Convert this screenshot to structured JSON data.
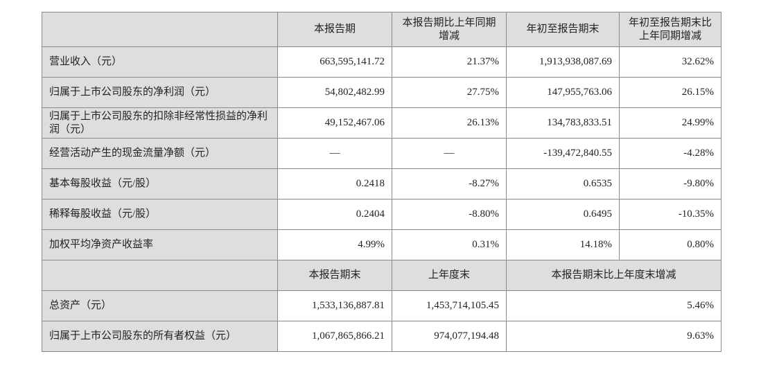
{
  "table": {
    "header": [
      "本报告期",
      "本报告期比上年同期增减",
      "年初至报告期末",
      "年初至报告期末比上年同期增减"
    ],
    "rows": [
      [
        "营业收入（元）",
        "663,595,141.72",
        "21.37%",
        "1,913,938,087.69",
        "32.62%"
      ],
      [
        "归属于上市公司股东的净利润（元）",
        "54,802,482.99",
        "27.75%",
        "147,955,763.06",
        "26.15%"
      ],
      [
        "归属于上市公司股东的扣除非经常性损益的净利润（元）",
        "49,152,467.06",
        "26.13%",
        "134,783,833.51",
        "24.99%"
      ],
      [
        "经营活动产生的现金流量净额（元）",
        "—",
        "—",
        "-139,472,840.55",
        "-4.28%"
      ],
      [
        "基本每股收益（元/股）",
        "0.2418",
        "-8.27%",
        "0.6535",
        "-9.80%"
      ],
      [
        "稀释每股收益（元/股）",
        "0.2404",
        "-8.80%",
        "0.6495",
        "-10.35%"
      ],
      [
        "加权平均净资产收益率",
        "4.99%",
        "0.31%",
        "14.18%",
        "0.80%"
      ]
    ],
    "header2": [
      "本报告期末",
      "上年度末",
      "本报告期末比上年度末增减"
    ],
    "rows2": [
      [
        "总资产（元）",
        "1,533,136,887.81",
        "1,453,714,105.45",
        "5.46%"
      ],
      [
        "归属于上市公司股东的所有者权益（元）",
        "1,067,865,866.21",
        "974,077,194.48",
        "9.63%"
      ]
    ]
  }
}
